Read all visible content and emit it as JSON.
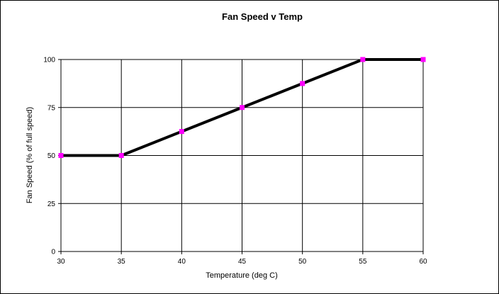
{
  "chart_data": {
    "type": "line",
    "title": "Fan Speed v Temp",
    "xlabel": "Temperature (deg C)",
    "ylabel": "Fan Speed (% of full speed)",
    "xlim": [
      30,
      60
    ],
    "ylim": [
      0,
      100
    ],
    "xticks": [
      30,
      35,
      40,
      45,
      50,
      55,
      60
    ],
    "yticks": [
      0,
      25,
      50,
      75,
      100
    ],
    "grid": true,
    "legend": "none",
    "series": [
      {
        "x": [
          30,
          35,
          40,
          45,
          50,
          55,
          60
        ],
        "y": [
          50,
          50,
          62.5,
          75,
          87.5,
          100,
          100
        ],
        "line_color": "#000000",
        "marker_color": "#ff00ff"
      }
    ]
  }
}
